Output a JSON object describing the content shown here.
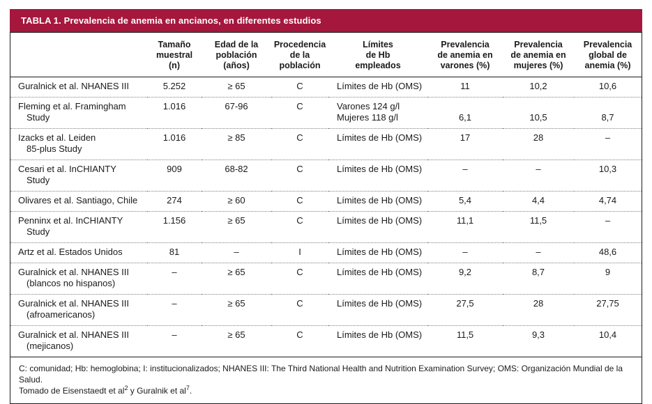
{
  "title": "TABLA 1. Prevalencia de anemia en ancianos, en diferentes estudios",
  "colors": {
    "header_bg": "#A5173D",
    "header_text": "#FFFFFF",
    "border": "#1A1A1A",
    "dotted": "#808080",
    "text": "#1A1A1A"
  },
  "table": {
    "headers": [
      {
        "id": "study",
        "lines": []
      },
      {
        "id": "n",
        "lines": [
          "Tamaño",
          "muestral",
          "(n)"
        ]
      },
      {
        "id": "edad",
        "lines": [
          "Edad de la",
          "población",
          "(años)"
        ]
      },
      {
        "id": "proc",
        "lines": [
          "Procedencia",
          "de la",
          "población"
        ]
      },
      {
        "id": "limites",
        "lines": [
          "Límites",
          "de Hb",
          "empleados"
        ]
      },
      {
        "id": "varones",
        "lines": [
          "Prevalencia",
          "de anemia en",
          "varones (%)"
        ]
      },
      {
        "id": "mujeres",
        "lines": [
          "Prevalencia",
          "de anemia en",
          "mujeres (%)"
        ]
      },
      {
        "id": "global",
        "lines": [
          "Prevalencia",
          "global de",
          "anemia (%)"
        ]
      }
    ],
    "rows": [
      {
        "study": [
          "Guralnick et al. NHANES III"
        ],
        "n": "5.252",
        "edad": "≥ 65",
        "proc": "C",
        "limites": [
          "Límites de Hb (OMS)"
        ],
        "varones": "11",
        "mujeres": "10,2",
        "global": "10,6",
        "pv_bottom": false
      },
      {
        "study": [
          "Fleming et al. Framingham",
          "Study"
        ],
        "n": "1.016",
        "edad": "67-96",
        "proc": "C",
        "limites": [
          "Varones 124 g/l",
          "Mujeres 118 g/l"
        ],
        "varones": "6,1",
        "mujeres": "10,5",
        "global": "8,7",
        "pv_bottom": true
      },
      {
        "study": [
          "Izacks et al. Leiden",
          "85-plus Study"
        ],
        "n": "1.016",
        "edad": "≥ 85",
        "proc": "C",
        "limites": [
          "Límites de Hb (OMS)"
        ],
        "varones": "17",
        "mujeres": "28",
        "global": "–",
        "pv_bottom": false
      },
      {
        "study": [
          "Cesari et al. InCHIANTY",
          "Study"
        ],
        "n": "909",
        "edad": "68-82",
        "proc": "C",
        "limites": [
          "Límites de Hb (OMS)"
        ],
        "varones": "–",
        "mujeres": "–",
        "global": "10,3",
        "pv_bottom": false
      },
      {
        "study": [
          "Olivares et al. Santiago, Chile"
        ],
        "n": "274",
        "edad": "≥ 60",
        "proc": "C",
        "limites": [
          "Límites de Hb (OMS)"
        ],
        "varones": "5,4",
        "mujeres": "4,4",
        "global": "4,74",
        "pv_bottom": false
      },
      {
        "study": [
          "Penninx et al. InCHIANTY",
          "Study"
        ],
        "n": "1.156",
        "edad": "≥ 65",
        "proc": "C",
        "limites": [
          "Límites de Hb (OMS)"
        ],
        "varones": "11,1",
        "mujeres": "11,5",
        "global": "–",
        "pv_bottom": false
      },
      {
        "study": [
          "Artz et al. Estados Unidos"
        ],
        "n": "81",
        "edad": "–",
        "proc": "I",
        "limites": [
          "Límites de Hb (OMS)"
        ],
        "varones": "–",
        "mujeres": "–",
        "global": "48,6",
        "pv_bottom": false
      },
      {
        "study": [
          "Guralnick et al. NHANES III",
          "(blancos no hispanos)"
        ],
        "n": "–",
        "edad": "≥ 65",
        "proc": "C",
        "limites": [
          "Límites de Hb (OMS)"
        ],
        "varones": "9,2",
        "mujeres": "8,7",
        "global": "9",
        "pv_bottom": false
      },
      {
        "study": [
          "Guralnick et al. NHANES III",
          "(afroamericanos)"
        ],
        "n": "–",
        "edad": "≥ 65",
        "proc": "C",
        "limites": [
          "Límites de Hb (OMS)"
        ],
        "varones": "27,5",
        "mujeres": "28",
        "global": "27,75",
        "pv_bottom": false
      },
      {
        "study": [
          "Guralnick et al. NHANES III",
          "(mejicanos)"
        ],
        "n": "–",
        "edad": "≥ 65",
        "proc": "C",
        "limites": [
          "Límites de Hb (OMS)"
        ],
        "varones": "11,5",
        "mujeres": "9,3",
        "global": "10,4",
        "pv_bottom": false
      }
    ]
  },
  "footnotes": {
    "abbreviations": "C: comunidad; Hb: hemoglobina; I: institucionalizados; NHANES III: The Third National Health and Nutrition Examination Survey; OMS: Organización Mundial de la Salud.",
    "source_prefix": "Tomado de Eisenstaedt et al",
    "source_ref1": "2",
    "source_mid": " y Guralnik et al",
    "source_ref2": "7",
    "source_end": "."
  }
}
